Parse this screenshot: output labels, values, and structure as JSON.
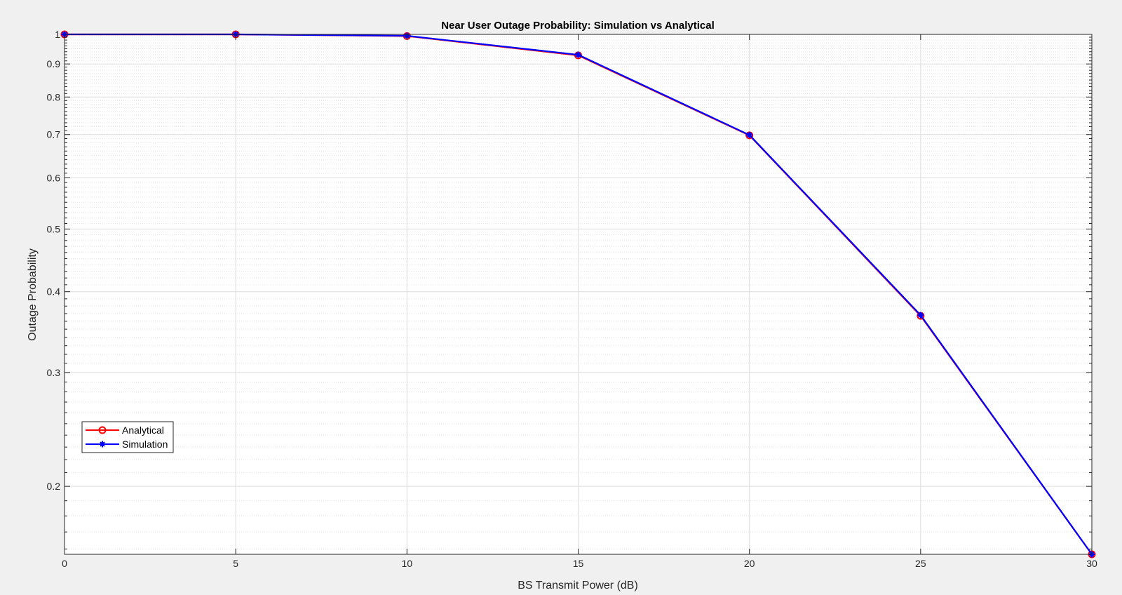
{
  "chart_data": {
    "type": "line",
    "title": "Near User Outage Probability: Simulation vs Analytical",
    "xlabel": "BS Transmit Power (dB)",
    "ylabel": "Outage Probability",
    "xlim": [
      0,
      30
    ],
    "ylim": [
      0.157,
      1.0
    ],
    "yscale": "log",
    "grid": true,
    "minor_grid": true,
    "legend_position": "lower-left",
    "xticks": [
      0,
      5,
      10,
      15,
      20,
      25,
      30
    ],
    "xtick_labels": [
      "0",
      "5",
      "10",
      "15",
      "20",
      "25",
      "30"
    ],
    "yticks": [
      0.2,
      0.3,
      0.4,
      0.5,
      0.6,
      0.7,
      0.8,
      0.9,
      1.0
    ],
    "ytick_labels": [
      "0.2",
      "0.3",
      "0.4",
      "0.5",
      "0.6",
      "0.7",
      "0.8",
      "0.9",
      "1"
    ],
    "x": [
      0,
      5,
      10,
      15,
      20,
      25,
      30
    ],
    "series": [
      {
        "name": "Analytical",
        "values": [
          1.0,
          1.0,
          0.994,
          0.928,
          0.698,
          0.367,
          0.157
        ],
        "color": "#ff0000",
        "marker": "circle"
      },
      {
        "name": "Simulation",
        "values": [
          1.0,
          1.0,
          0.995,
          0.93,
          0.699,
          0.368,
          0.157
        ],
        "color": "#0000ff",
        "marker": "asterisk"
      }
    ]
  }
}
